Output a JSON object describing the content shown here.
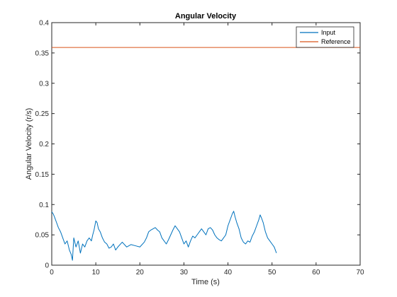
{
  "colors": {
    "input": "#0072BD",
    "reference": "#D95319"
  },
  "chart_data": {
    "type": "line",
    "title": "Angular Velocity",
    "xlabel": "Time (s)",
    "ylabel": "Angular Velocity (r/s)",
    "xlim": [
      0,
      70
    ],
    "ylim": [
      0,
      0.4
    ],
    "xticks": [
      "0",
      "10",
      "20",
      "30",
      "40",
      "50",
      "60",
      "70"
    ],
    "yticks": [
      "0",
      "0.05",
      "0.1",
      "0.15",
      "0.2",
      "0.25",
      "0.3",
      "0.35",
      "0.4"
    ],
    "grid": true,
    "legend_position": "top-right",
    "series": [
      {
        "name": "Input",
        "color": "#0072BD",
        "x": [
          0,
          0.3,
          0.6,
          1,
          1.5,
          2,
          2.5,
          3,
          3.5,
          4,
          4.4,
          4.7,
          5,
          5.5,
          6,
          6.5,
          7,
          7.5,
          8,
          8.5,
          9,
          9.3,
          9.6,
          10,
          10.3,
          10.6,
          11,
          11.5,
          12,
          12.5,
          13,
          13.5,
          14,
          14.5,
          15,
          16,
          17,
          18,
          19,
          20,
          21,
          21.5,
          22,
          22.5,
          23,
          23.5,
          24,
          24.5,
          25,
          25.5,
          26,
          26.5,
          27,
          27.5,
          28,
          28.5,
          29,
          29.5,
          30,
          30.5,
          31,
          31.5,
          32,
          32.5,
          33,
          33.5,
          34,
          34.5,
          35,
          35.5,
          36,
          36.5,
          37,
          37.5,
          38,
          38.5,
          39,
          39.5,
          40,
          40.5,
          41,
          41.3,
          41.6,
          42,
          42.5,
          43,
          43.5,
          44,
          44.5,
          45,
          45.5,
          46,
          46.5,
          47,
          47.3,
          47.6,
          48,
          48.5,
          49,
          49.5,
          50,
          50.5,
          51
        ],
        "y": [
          0.088,
          0.085,
          0.08,
          0.072,
          0.062,
          0.055,
          0.045,
          0.035,
          0.04,
          0.025,
          0.018,
          0.008,
          0.045,
          0.03,
          0.04,
          0.02,
          0.035,
          0.03,
          0.04,
          0.045,
          0.04,
          0.05,
          0.058,
          0.073,
          0.07,
          0.06,
          0.055,
          0.045,
          0.038,
          0.035,
          0.028,
          0.03,
          0.035,
          0.025,
          0.03,
          0.038,
          0.03,
          0.034,
          0.032,
          0.03,
          0.038,
          0.045,
          0.055,
          0.058,
          0.06,
          0.062,
          0.058,
          0.055,
          0.045,
          0.04,
          0.035,
          0.042,
          0.05,
          0.058,
          0.065,
          0.06,
          0.055,
          0.045,
          0.035,
          0.04,
          0.03,
          0.04,
          0.048,
          0.045,
          0.05,
          0.055,
          0.06,
          0.055,
          0.05,
          0.06,
          0.062,
          0.058,
          0.05,
          0.045,
          0.042,
          0.04,
          0.045,
          0.05,
          0.065,
          0.075,
          0.085,
          0.089,
          0.08,
          0.07,
          0.06,
          0.045,
          0.038,
          0.035,
          0.04,
          0.038,
          0.048,
          0.055,
          0.065,
          0.075,
          0.083,
          0.078,
          0.07,
          0.055,
          0.045,
          0.04,
          0.035,
          0.03,
          0.02
        ]
      },
      {
        "name": "Reference",
        "color": "#D95319",
        "x": [
          0,
          70
        ],
        "y": [
          0.359,
          0.359
        ]
      }
    ]
  }
}
